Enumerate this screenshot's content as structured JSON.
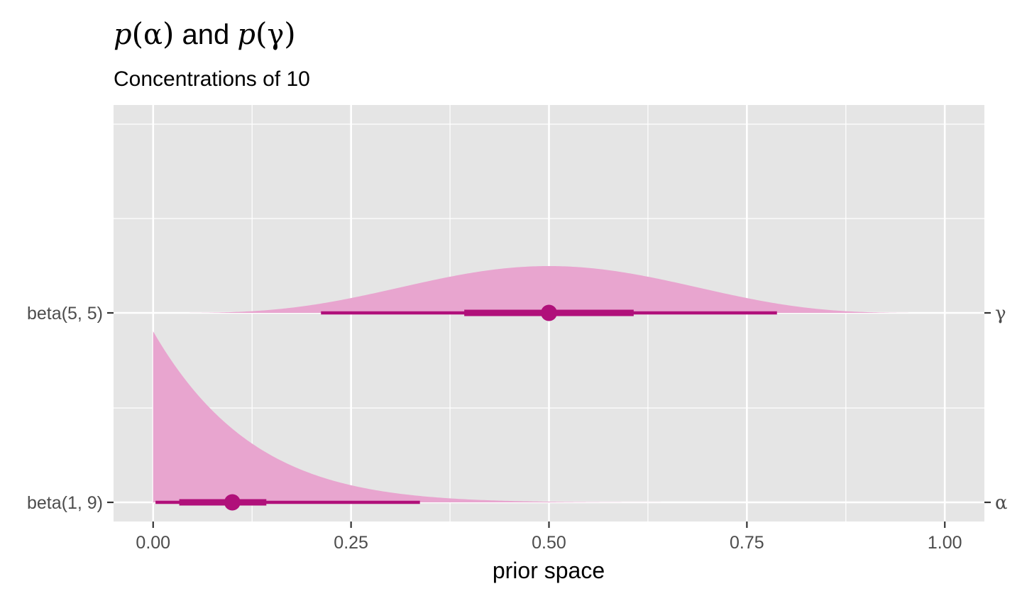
{
  "chart_data": {
    "type": "area",
    "title": {
      "p1": "p",
      "arg1": "α",
      "conj": " and ",
      "p2": "p",
      "arg2": "γ"
    },
    "subtitle": "Concentrations of 10",
    "xlabel": "prior space",
    "xlim": [
      -0.05,
      1.05
    ],
    "x_ticks": [
      0.0,
      0.25,
      0.5,
      0.75,
      1.0
    ],
    "x_tick_labels": [
      "0.00",
      "0.25",
      "0.50",
      "0.75",
      "1.00"
    ],
    "grid": true,
    "series": [
      {
        "name": "beta(1, 9)",
        "secondary_label": "α",
        "shape": [
          1,
          9
        ],
        "point": 0.1,
        "interval_66": [
          0.033,
          0.143
        ],
        "interval_95": [
          0.003,
          0.337
        ]
      },
      {
        "name": "beta(5, 5)",
        "secondary_label": "γ",
        "shape": [
          5,
          5
        ],
        "point": 0.5,
        "interval_66": [
          0.393,
          0.607
        ],
        "interval_95": [
          0.212,
          0.788
        ]
      }
    ],
    "colors": {
      "density_fill": "#e8a5cf",
      "interval": "#b0107a",
      "panel": "#e5e5e5",
      "grid": "#ffffff",
      "axis_text": "#4d4d4d",
      "tick": "#333333"
    }
  }
}
